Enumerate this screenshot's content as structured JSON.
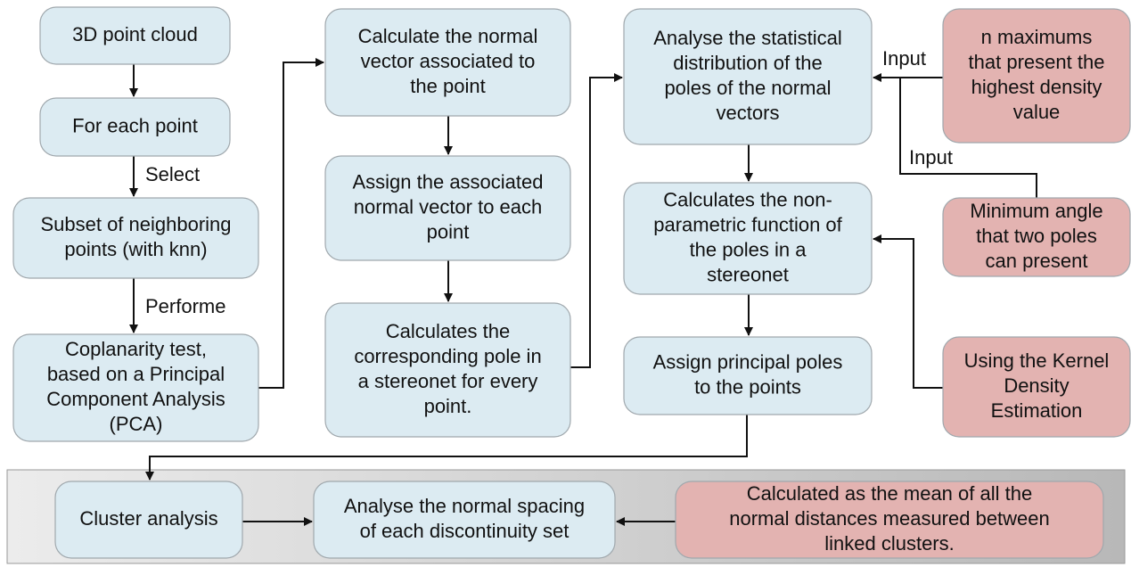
{
  "nodes": [
    {
      "lines": [
        "3D point cloud"
      ]
    },
    {
      "lines": [
        "For each point"
      ]
    },
    {
      "lines": [
        "Subset of neighboring",
        "points (with knn)"
      ]
    },
    {
      "lines": [
        "Coplanarity test,",
        "based on a Principal",
        "Component Analysis",
        "(PCA)"
      ]
    },
    {
      "lines": [
        "Calculate the normal",
        "vector associated to",
        "the point"
      ]
    },
    {
      "lines": [
        "Assign the associated",
        "normal vector to each",
        "point"
      ]
    },
    {
      "lines": [
        "Calculates the",
        "corresponding pole in",
        "a stereonet for every",
        "point."
      ]
    },
    {
      "lines": [
        "Analyse the statistical",
        "distribution of the",
        "poles of the normal",
        "vectors"
      ]
    },
    {
      "lines": [
        "Calculates the non-",
        "parametric function of",
        "the poles in a",
        "stereonet"
      ]
    },
    {
      "lines": [
        "Assign principal poles",
        "to the points"
      ]
    },
    {
      "lines": [
        "n maximums",
        "that present the",
        "highest density",
        "value"
      ]
    },
    {
      "lines": [
        "Minimum angle",
        "that two poles",
        "can present"
      ]
    },
    {
      "lines": [
        "Using the Kernel",
        "Density",
        "Estimation"
      ]
    },
    {
      "lines": [
        "Cluster analysis"
      ]
    },
    {
      "lines": [
        "Analyse the normal spacing",
        "of each discontinuity set"
      ]
    },
    {
      "lines": [
        "Calculated as the mean of all the",
        "normal distances measured between",
        "linked clusters."
      ]
    }
  ],
  "edge_labels": [
    "Select",
    "Performe",
    "Input",
    "Input"
  ]
}
